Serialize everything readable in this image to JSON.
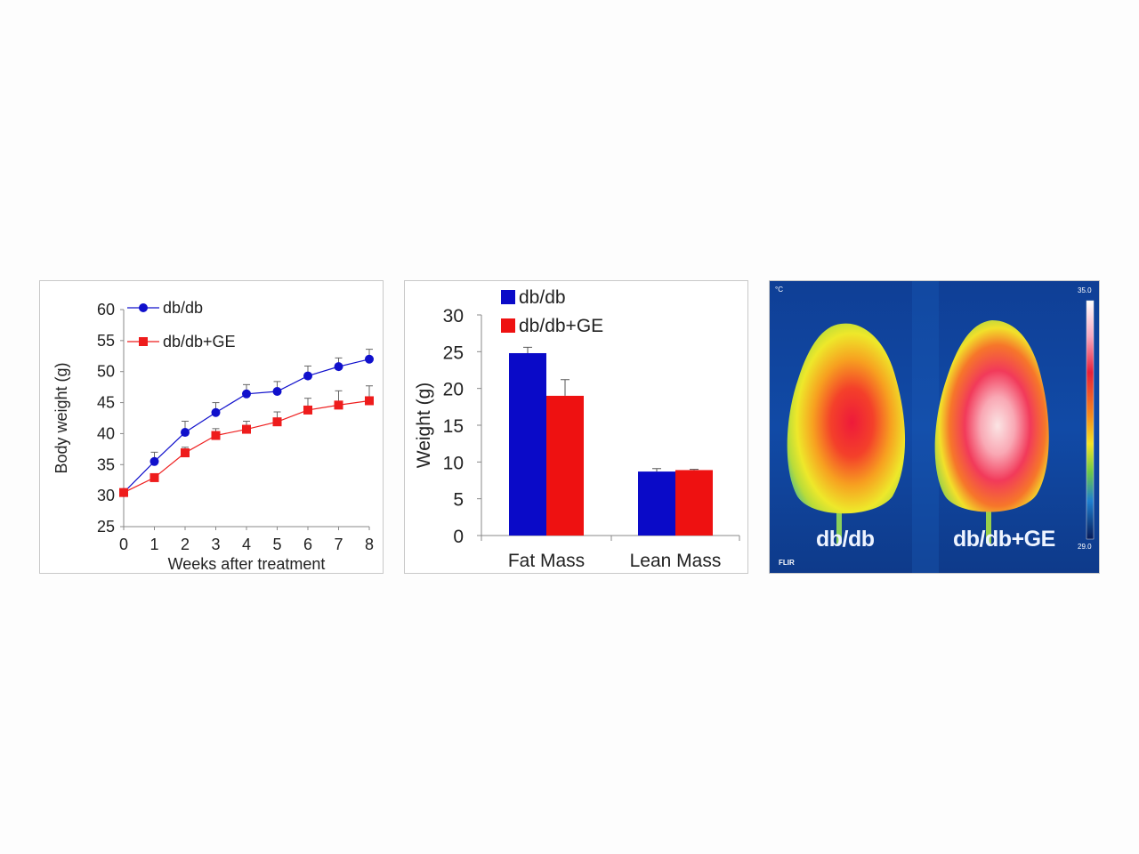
{
  "colors": {
    "db": "#1010cc",
    "dbge": "#ee1c1c",
    "bar_db": "#0a0ac8",
    "bar_dbge": "#ee1111"
  },
  "chart_data": [
    {
      "type": "line",
      "title": "",
      "xlabel": "Weeks after treatment",
      "ylabel": "Body weight  (g)",
      "x": [
        0,
        1,
        2,
        3,
        4,
        5,
        6,
        7,
        8
      ],
      "xticks": [
        "0",
        "1",
        "2",
        "3",
        "4",
        "5",
        "6",
        "7",
        "8"
      ],
      "yticks": [
        "25",
        "30",
        "35",
        "40",
        "45",
        "50",
        "55",
        "60"
      ],
      "xlim": [
        0,
        8
      ],
      "ylim": [
        25,
        60
      ],
      "legend": "top-left",
      "series": [
        {
          "name": "db/db",
          "values": [
            30.5,
            35.5,
            40.2,
            43.4,
            46.4,
            46.8,
            49.3,
            50.8,
            52.0
          ],
          "error": [
            0.3,
            1.5,
            1.8,
            1.6,
            1.5,
            1.6,
            1.6,
            1.4,
            1.6
          ]
        },
        {
          "name": "db/db+GE",
          "values": [
            30.5,
            32.9,
            36.9,
            39.7,
            40.7,
            41.9,
            43.8,
            44.6,
            45.3
          ],
          "error": [
            0.3,
            0.5,
            0.9,
            1.1,
            1.3,
            1.6,
            1.9,
            2.3,
            2.4
          ]
        }
      ]
    },
    {
      "type": "bar",
      "title": "",
      "xlabel": "",
      "ylabel": "Weight (g)",
      "categories": [
        "Fat Mass",
        "Lean  Mass"
      ],
      "yticks": [
        "0",
        "5",
        "10",
        "15",
        "20",
        "25",
        "30"
      ],
      "ylim": [
        0,
        30
      ],
      "legend": "top-left",
      "series": [
        {
          "name": "db/db",
          "values": [
            24.8,
            8.7
          ],
          "error": [
            0.8,
            0.4
          ]
        },
        {
          "name": "db/db+GE",
          "values": [
            19.0,
            8.9
          ],
          "error": [
            2.2,
            0.1
          ]
        }
      ]
    }
  ],
  "thermal": {
    "labels": [
      "db/db",
      "db/db+GE"
    ],
    "scale_top": "35.0",
    "scale_bottom": "29.0",
    "unit": "°C",
    "brand": "FLIR"
  }
}
